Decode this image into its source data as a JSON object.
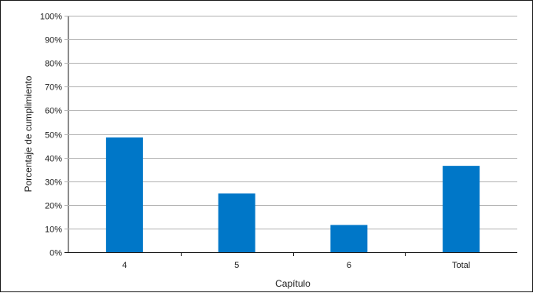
{
  "chart_data": {
    "type": "bar",
    "categories": [
      "4",
      "5",
      "6",
      "Total"
    ],
    "values": [
      48.5,
      24.8,
      11.5,
      36.5
    ],
    "xlabel": "Capítulo",
    "ylabel": "Porcentaje de cumplimiento",
    "ylim": [
      0,
      100
    ],
    "yticks": [
      0,
      10,
      20,
      30,
      40,
      50,
      60,
      70,
      80,
      90,
      100
    ],
    "ytick_labels": [
      "0%",
      "10%",
      "20%",
      "30%",
      "40%",
      "50%",
      "60%",
      "70%",
      "80%",
      "90%",
      "100%"
    ],
    "grid": true,
    "bar_color": "#0077c8",
    "grid_color": "#b3b3b3"
  }
}
